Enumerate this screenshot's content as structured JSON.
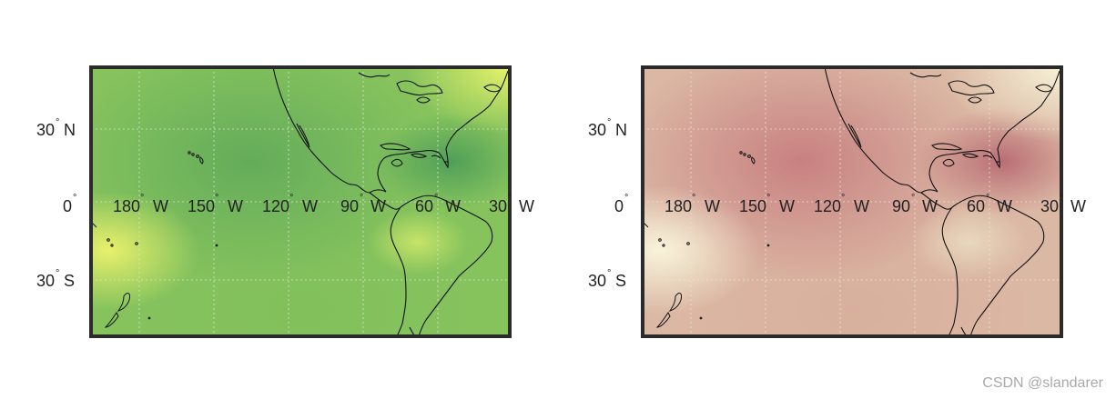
{
  "maps": [
    {
      "name": "left-map",
      "colormap": [
        "#6fb45b",
        "#84c35d",
        "#9fd45f",
        "#c8e665",
        "#e2f06a"
      ],
      "frame_color": "#2b2b2b"
    },
    {
      "name": "right-map",
      "colormap": [
        "#c47a7a",
        "#d49a8f",
        "#ddbba3",
        "#e8d5b6",
        "#f5f0d4"
      ],
      "frame_color": "#2b2b2b"
    }
  ],
  "lat_labels": [
    {
      "deg": "30",
      "hemi": "N"
    },
    {
      "deg": "0",
      "hemi": ""
    },
    {
      "deg": "30",
      "hemi": "S"
    }
  ],
  "lon_labels": [
    {
      "deg": "180",
      "hemi": "W"
    },
    {
      "deg": "150",
      "hemi": "W"
    },
    {
      "deg": "120",
      "hemi": "W"
    },
    {
      "deg": "90",
      "hemi": "W"
    },
    {
      "deg": "60",
      "hemi": "W"
    },
    {
      "deg": "30",
      "hemi": "W"
    }
  ],
  "degree_symbol": "°",
  "watermark": "CSDN @slandarer"
}
